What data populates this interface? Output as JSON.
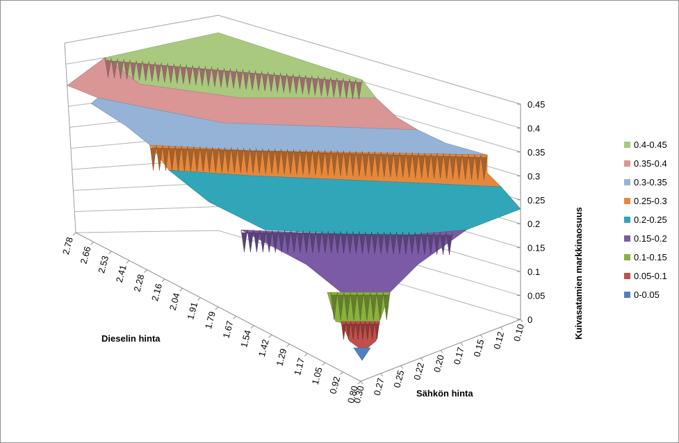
{
  "chart_data": {
    "type": "surface",
    "title": "",
    "zlabel": "Kuivasatamien markkinaosuus",
    "xlabel": "Dieselin hinta",
    "ylabel": "Sähkön hinta",
    "zlim": [
      0,
      0.45
    ],
    "z_ticks": [
      "0",
      "0.05",
      "0.1",
      "0.15",
      "0.2",
      "0.25",
      "0.3",
      "0.35",
      "0.4",
      "0.45"
    ],
    "diesel_ticks": [
      "2.78",
      "2.66",
      "2.53",
      "2.41",
      "2.28",
      "2.16",
      "2.04",
      "1.91",
      "1.79",
      "1.67",
      "1.54",
      "1.42",
      "1.29",
      "1.17",
      "1.05",
      "0.92",
      "0.80"
    ],
    "electricity_ticks": [
      "0.10",
      "0.12",
      "0.15",
      "0.17",
      "0.20",
      "0.22",
      "0.25",
      "0.27",
      "0.30"
    ],
    "legend": [
      {
        "label": "0.4-0.45",
        "color": "#a9c97f"
      },
      {
        "label": "0.35-0.4",
        "color": "#d99694"
      },
      {
        "label": "0.3-0.35",
        "color": "#95b3d7"
      },
      {
        "label": "0.25-0.3",
        "color": "#e6883c"
      },
      {
        "label": "0.2-0.25",
        "color": "#31a6b8"
      },
      {
        "label": "0.15-0.2",
        "color": "#7c5ba6"
      },
      {
        "label": "0.1-0.15",
        "color": "#8ab13e"
      },
      {
        "label": "0.05-0.1",
        "color": "#c0504d"
      },
      {
        "label": "0-0.05",
        "color": "#4f81bd"
      }
    ],
    "surface_bands": [
      {
        "range": "0.4-0.45",
        "color": "#a9c97f"
      },
      {
        "range": "0.35-0.4",
        "color": "#d99694"
      },
      {
        "range": "0.3-0.35",
        "color": "#95b3d7"
      },
      {
        "range": "0.25-0.3",
        "color": "#e6883c"
      },
      {
        "range": "0.2-0.25",
        "color": "#31a6b8"
      },
      {
        "range": "0.15-0.2",
        "color": "#7c5ba6"
      },
      {
        "range": "0.1-0.15",
        "color": "#8ab13e"
      },
      {
        "range": "0.05-0.1",
        "color": "#c0504d"
      },
      {
        "range": "0-0.05",
        "color": "#4f81bd"
      }
    ],
    "grid": true,
    "legend_position": "right"
  }
}
